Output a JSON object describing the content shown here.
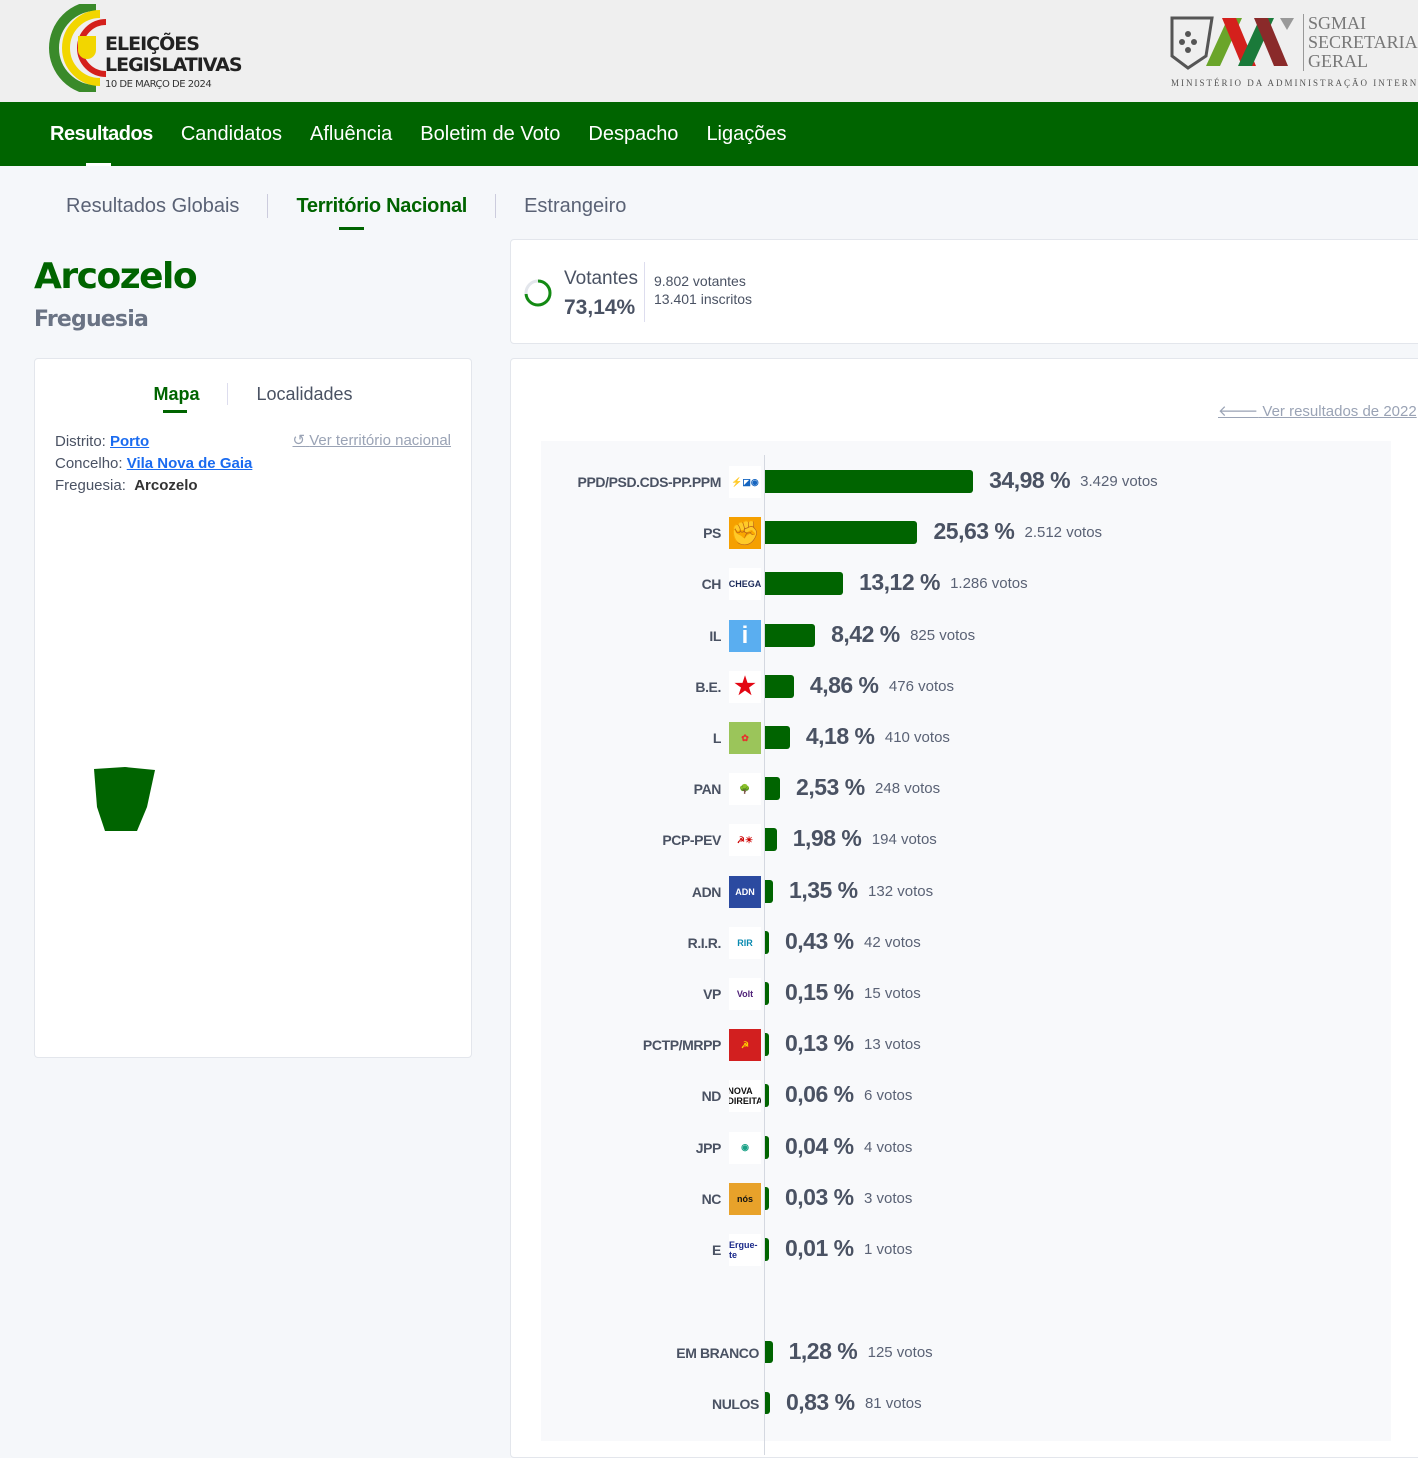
{
  "header": {
    "logo_line1": "ELEIÇÕES",
    "logo_line2": "LEGISLATIVAS",
    "logo_date": "10 DE MARÇO DE 2024",
    "sg_line1": "SGMAI",
    "sg_line2": "SECRETARIA",
    "sg_line3": "GERAL",
    "sg_ministry": "MINISTÉRIO DA ADMINISTRAÇÃO INTERNA"
  },
  "nav": [
    {
      "label": "Resultados"
    },
    {
      "label": "Candidatos"
    },
    {
      "label": "Afluência"
    },
    {
      "label": "Boletim de Voto"
    },
    {
      "label": "Despacho"
    },
    {
      "label": "Ligações"
    }
  ],
  "subtabs": [
    {
      "label": "Resultados Globais"
    },
    {
      "label": "Território Nacional"
    },
    {
      "label": "Estrangeiro"
    }
  ],
  "place": {
    "name": "Arcozelo",
    "type": "Freguesia"
  },
  "turnout": {
    "label": "Votantes",
    "percent": "73,14%",
    "percent_value": 73.14,
    "votantes": "9.802 votantes",
    "inscritos": "13.401 inscritos"
  },
  "map": {
    "tabs": [
      {
        "label": "Mapa"
      },
      {
        "label": "Localidades"
      }
    ],
    "distrito_label": "Distrito:",
    "distrito": "Porto",
    "concelho_label": "Concelho:",
    "concelho": "Vila Nova de Gaia",
    "freguesia_label": "Freguesia:",
    "freguesia": "Arcozelo",
    "reset_link": "Ver território nacional"
  },
  "results": {
    "prev_link": "Ver resultados de 2022"
  },
  "colors": {
    "accent": "#006400"
  },
  "chart_data": {
    "type": "bar",
    "orientation": "horizontal",
    "categories": [
      "PPD/PSD.CDS-PP.PPM",
      "PS",
      "CH",
      "IL",
      "B.E.",
      "L",
      "PAN",
      "PCP-PEV",
      "ADN",
      "R.I.R.",
      "VP",
      "PCTP/MRPP",
      "ND",
      "JPP",
      "NC",
      "E"
    ],
    "values": [
      34.98,
      25.63,
      13.12,
      8.42,
      4.86,
      4.18,
      2.53,
      1.98,
      1.35,
      0.43,
      0.15,
      0.13,
      0.06,
      0.04,
      0.03,
      0.01
    ],
    "labels": [
      "34,98 %",
      "25,63 %",
      "13,12 %",
      "8,42 %",
      "4,86 %",
      "4,18 %",
      "2,53 %",
      "1,98 %",
      "1,35 %",
      "0,43 %",
      "0,15 %",
      "0,13 %",
      "0,06 %",
      "0,04 %",
      "0,03 %",
      "0,01 %"
    ],
    "votes": [
      "3.429 votos",
      "2.512 votos",
      "1.286 votos",
      "825 votos",
      "476 votos",
      "410 votos",
      "248 votos",
      "194 votos",
      "132 votos",
      "42 votos",
      "15 votos",
      "13 votos",
      "6 votos",
      "4 votos",
      "3 votos",
      "1 votos"
    ],
    "logos": [
      {
        "text": "⚡◪◉",
        "bg": "#fff",
        "fg": "#1565c0"
      },
      {
        "text": "✊",
        "bg": "#f5a000",
        "fg": "#e30613"
      },
      {
        "text": "CHEGA",
        "bg": "#fff",
        "fg": "#1b2a5a"
      },
      {
        "text": "i",
        "bg": "#5aaef0",
        "fg": "#fff"
      },
      {
        "text": "★",
        "bg": "#fff",
        "fg": "#e30613"
      },
      {
        "text": "✿",
        "bg": "#9bc55a",
        "fg": "#e5322d"
      },
      {
        "text": "🌳",
        "bg": "#fff",
        "fg": "#1a7a9a"
      },
      {
        "text": "☭☀",
        "bg": "#fff",
        "fg": "#c00"
      },
      {
        "text": "ADN",
        "bg": "#2b4aa0",
        "fg": "#fff"
      },
      {
        "text": "RIR",
        "bg": "#fff",
        "fg": "#0a8ab0"
      },
      {
        "text": "Volt",
        "bg": "#fff",
        "fg": "#502379"
      },
      {
        "text": "☭",
        "bg": "#d21f1f",
        "fg": "#ffd200"
      },
      {
        "text": "NOVA DIREITA",
        "bg": "#fff",
        "fg": "#111"
      },
      {
        "text": "◉",
        "bg": "#fff",
        "fg": "#17a085"
      },
      {
        "text": "nós",
        "bg": "#e8a22a",
        "fg": "#111"
      },
      {
        "text": "Ergue-te",
        "bg": "#fff",
        "fg": "#1b2a8a"
      }
    ],
    "extra": [
      {
        "name": "EM BRANCO",
        "value": 1.28,
        "label": "1,28 %",
        "votes": "125 votos"
      },
      {
        "name": "NULOS",
        "value": 0.83,
        "label": "0,83 %",
        "votes": "81 votos"
      }
    ]
  }
}
